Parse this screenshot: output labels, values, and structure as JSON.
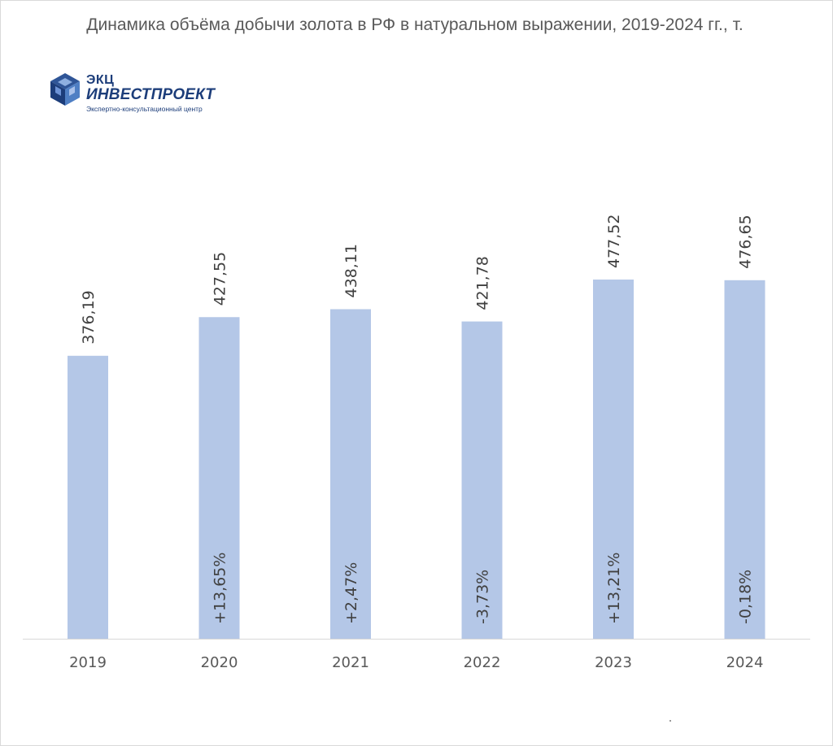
{
  "title": "Динамика объёма добычи золота в РФ в натуральном выражении, 2019-2024 гг., т.",
  "logo": {
    "line1": "ЭКЦ",
    "line2": "ИНВЕСТПРОЕКТ",
    "line3": "Экспертно-консультационный центр"
  },
  "chart_data": {
    "type": "bar",
    "title": "Динамика объёма добычи золота в РФ в натуральном выражении, 2019-2024 гг., т.",
    "categories": [
      "2019",
      "2020",
      "2021",
      "2022",
      "2023",
      "2024"
    ],
    "values": [
      376.19,
      427.55,
      438.11,
      421.78,
      477.52,
      476.65
    ],
    "value_labels": [
      "376,19",
      "427,55",
      "438,11",
      "421,78",
      "477,52",
      "476,65"
    ],
    "growth_labels": [
      "",
      "+13,65%",
      "+2,47%",
      "-3,73%",
      "+13,21%",
      "-0,18%"
    ],
    "ylim": [
      0,
      520
    ],
    "grid": false,
    "legend": "none",
    "bar_color": "#b4c7e7",
    "text_color": "#404040"
  }
}
